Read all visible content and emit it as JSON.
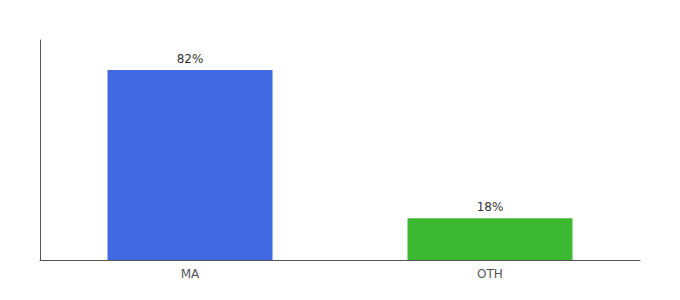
{
  "chart_data": {
    "type": "bar",
    "categories": [
      "MA",
      "OTH"
    ],
    "values": [
      82,
      18
    ],
    "colors": [
      "#4169e1",
      "#3cb832"
    ],
    "data_labels": true,
    "value_labels": [
      "82%",
      "18%"
    ],
    "ylim": [
      0,
      95
    ],
    "tick_labels": "x",
    "grid": false
  }
}
